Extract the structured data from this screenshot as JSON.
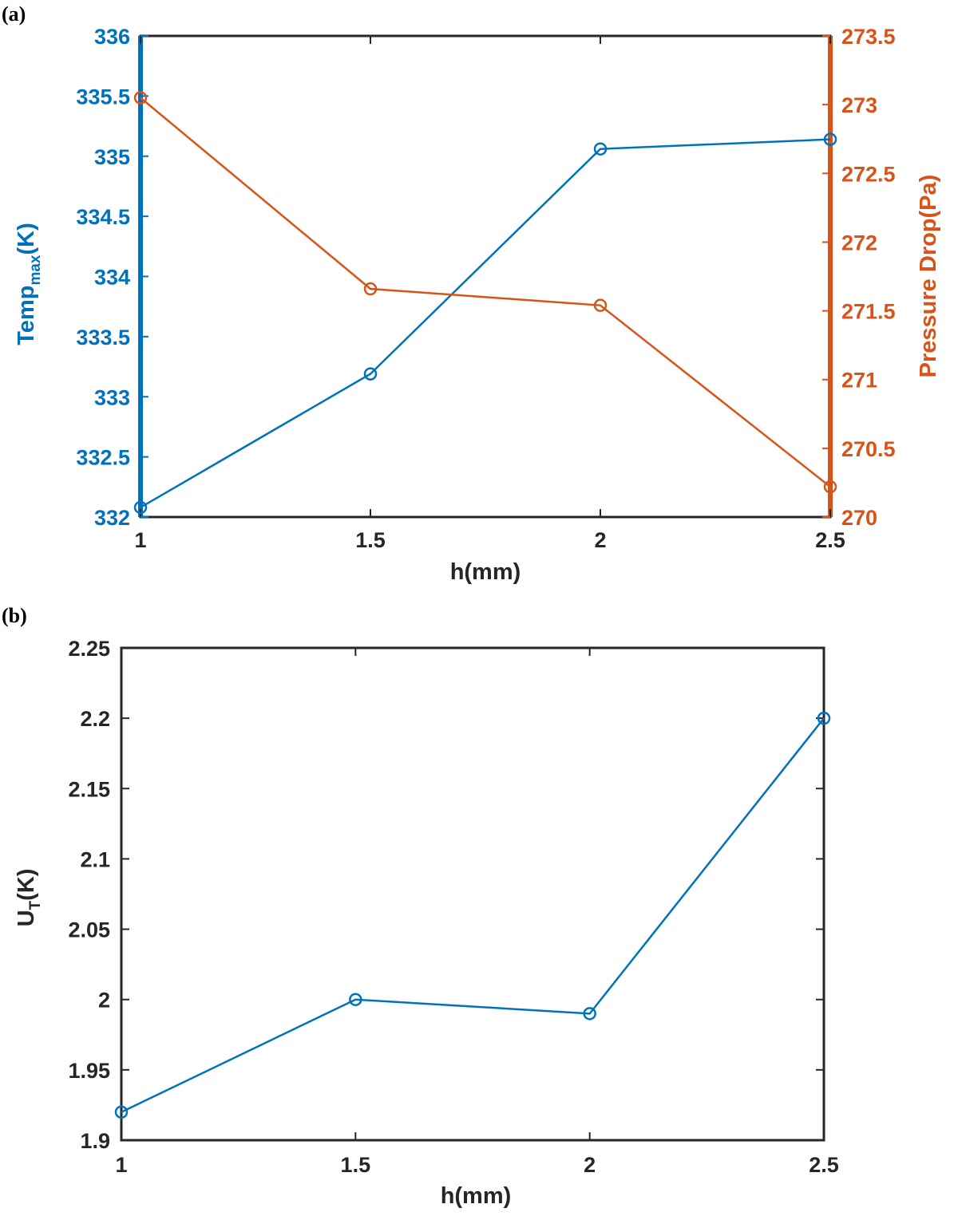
{
  "chart_data": [
    {
      "panel": "(a)",
      "type": "line",
      "xlabel": "h(mm)",
      "x": [
        1,
        1.5,
        2,
        2.5
      ],
      "xlim": [
        1,
        2.5
      ],
      "xticks": [
        "1",
        "1.5",
        "2",
        "2.5"
      ],
      "grid": false,
      "series": [
        {
          "name": "",
          "axis": "left",
          "color": "#0072BD",
          "marker": "circle",
          "values": [
            332.08,
            333.19,
            335.06,
            335.14
          ]
        },
        {
          "name": "",
          "axis": "right",
          "color": "#D95319",
          "marker": "circle",
          "values": [
            273.05,
            271.66,
            271.54,
            270.22
          ]
        }
      ],
      "y_left": {
        "label_main": "Temp",
        "label_sub": "max",
        "label_tail": "(K)",
        "ylim": [
          332,
          336
        ],
        "ticks": [
          "332",
          "332.5",
          "333",
          "333.5",
          "334",
          "334.5",
          "335",
          "335.5",
          "336"
        ],
        "color": "#0072BD"
      },
      "y_right": {
        "label": "Pressure Drop(Pa)",
        "ylim": [
          270,
          273.5
        ],
        "ticks": [
          "270",
          "270.5",
          "271",
          "271.5",
          "272",
          "272.5",
          "273",
          "273.5"
        ],
        "color": "#D95319"
      }
    },
    {
      "panel": "(b)",
      "type": "line",
      "xlabel": "h(mm)",
      "x": [
        1,
        1.5,
        2,
        2.5
      ],
      "xlim": [
        1,
        2.5
      ],
      "xticks": [
        "1",
        "1.5",
        "2",
        "2.5"
      ],
      "grid": false,
      "series": [
        {
          "name": "",
          "color": "#0072BD",
          "marker": "circle",
          "values": [
            1.92,
            2.0,
            1.99,
            2.2
          ]
        }
      ],
      "y": {
        "label_main": "U",
        "label_sub": "T",
        "label_tail": "(K)",
        "ylim": [
          1.9,
          2.25
        ],
        "ticks": [
          "1.9",
          "1.95",
          "2",
          "2.05",
          "2.1",
          "2.15",
          "2.2",
          "2.25"
        ]
      }
    }
  ]
}
